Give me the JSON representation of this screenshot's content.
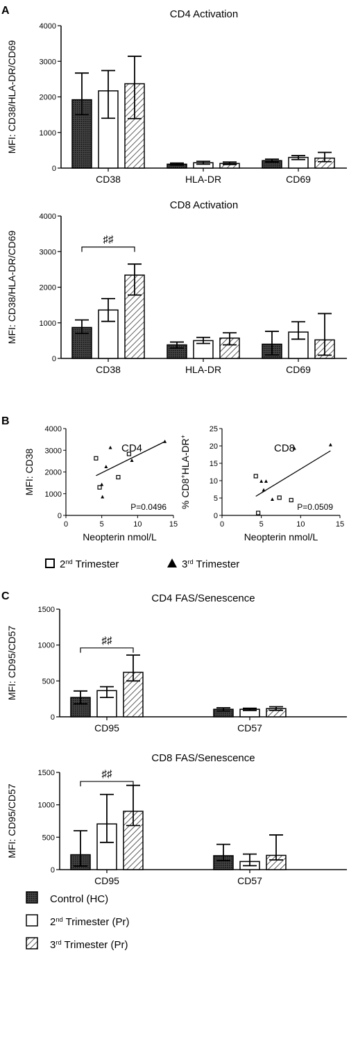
{
  "colors": {
    "control": "#555555",
    "trimester2": "#ffffff",
    "trimester3": "#cccccc",
    "line": "#000000"
  },
  "panel_labels": [
    "A",
    "B",
    "C"
  ],
  "legend_b": [
    {
      "text": "2",
      "sup": "nd",
      "rest": " Trimester",
      "marker": "open-square"
    },
    {
      "text": "3",
      "sup": "rd",
      "rest": " Trimester",
      "marker": "filled-triangle"
    }
  ],
  "legend_main": [
    {
      "text": "Control (HC)",
      "sup": "",
      "rest": "",
      "fill": "control"
    },
    {
      "text": "2",
      "sup": "nd",
      "rest": " Trimester (Pr)",
      "fill": "trimester2"
    },
    {
      "text": "3",
      "sup": "rd",
      "rest": " Trimester (Pr)",
      "fill": "trimester3"
    }
  ],
  "chart_data": [
    {
      "id": "cd4-activation",
      "type": "bar",
      "title": "CD4 Activation",
      "ylabel": "MFI: CD38/HLA-DR/CD69",
      "ylim": [
        0,
        4000
      ],
      "yticks": [
        0,
        1000,
        2000,
        3000,
        4000
      ],
      "categories": [
        "CD38",
        "HLA-DR",
        "CD69"
      ],
      "series": [
        {
          "name": "Control (HC)",
          "fill": "control",
          "values": [
            1920,
            110,
            210
          ],
          "err_low": [
            1500,
            80,
            170
          ],
          "err_high": [
            2670,
            140,
            250
          ]
        },
        {
          "name": "2nd Trimester (Pr)",
          "fill": "trimester2",
          "values": [
            2170,
            150,
            300
          ],
          "err_low": [
            1400,
            110,
            240
          ],
          "err_high": [
            2740,
            190,
            350
          ]
        },
        {
          "name": "3rd Trimester (Pr)",
          "fill": "trimester3",
          "values": [
            2370,
            130,
            280
          ],
          "err_low": [
            1390,
            100,
            180
          ],
          "err_high": [
            3140,
            170,
            440
          ]
        }
      ],
      "brackets": []
    },
    {
      "id": "cd8-activation",
      "type": "bar",
      "title": "CD8 Activation",
      "ylabel": "MFI: CD38/HLA-DR/CD69",
      "ylim": [
        0,
        4000
      ],
      "yticks": [
        0,
        1000,
        2000,
        3000,
        4000
      ],
      "categories": [
        "CD38",
        "HLA-DR",
        "CD69"
      ],
      "series": [
        {
          "name": "Control (HC)",
          "fill": "control",
          "values": [
            870,
            380,
            400
          ],
          "err_low": [
            700,
            290,
            100
          ],
          "err_high": [
            1080,
            460,
            760
          ]
        },
        {
          "name": "2nd Trimester (Pr)",
          "fill": "trimester2",
          "values": [
            1360,
            500,
            740
          ],
          "err_low": [
            1040,
            420,
            540
          ],
          "err_high": [
            1680,
            590,
            1030
          ]
        },
        {
          "name": "3rd Trimester (Pr)",
          "fill": "trimester3",
          "values": [
            2340,
            570,
            520
          ],
          "err_low": [
            1780,
            380,
            90
          ],
          "err_high": [
            2650,
            720,
            1260
          ]
        }
      ],
      "brackets": [
        {
          "from_group": 0,
          "from_series": 0,
          "to_group": 0,
          "to_series": 2,
          "y": 3130,
          "label": "♯♯"
        }
      ]
    },
    {
      "id": "cd4-scatter",
      "type": "scatter",
      "title": "CD4",
      "xlabel": "Neopterin nmol/L",
      "ylabel": "MFI: CD38",
      "xlim": [
        0,
        15
      ],
      "ylim": [
        0,
        4000
      ],
      "xticks": [
        0,
        5,
        10,
        15
      ],
      "yticks": [
        0,
        1000,
        2000,
        3000,
        4000
      ],
      "annotation": "P=0.0496",
      "series": [
        {
          "name": "2nd Trimester",
          "marker": "open-square",
          "x": [
            4.2,
            4.7,
            7.3,
            8.8
          ],
          "y": [
            2630,
            1290,
            1760,
            2830
          ]
        },
        {
          "name": "3rd Trimester",
          "marker": "filled-triangle",
          "x": [
            5.0,
            5.1,
            5.6,
            6.2,
            9.2,
            13.8
          ],
          "y": [
            1420,
            850,
            2240,
            3120,
            2530,
            3400
          ]
        }
      ],
      "fit": {
        "x": [
          4.2,
          13.8
        ],
        "y": [
          1830,
          3400
        ]
      }
    },
    {
      "id": "cd8-scatter",
      "type": "scatter",
      "title": "CD8",
      "xlabel": "Neopterin nmol/L",
      "ylabel": "% CD8+HLA-DR+",
      "ylabel_parts": [
        {
          "t": "% CD8",
          "s": false
        },
        {
          "t": "+",
          "s": true
        },
        {
          "t": "HLA-DR",
          "s": false
        },
        {
          "t": "+",
          "s": true
        }
      ],
      "xlim": [
        0,
        15
      ],
      "ylim": [
        0,
        25
      ],
      "xticks": [
        0,
        5,
        10,
        15
      ],
      "yticks": [
        0,
        5,
        10,
        15,
        20,
        25
      ],
      "annotation": "P=0.0509",
      "series": [
        {
          "name": "2nd Trimester",
          "marker": "open-square",
          "x": [
            4.3,
            4.6,
            7.3,
            8.8
          ],
          "y": [
            11.3,
            0.7,
            5.1,
            4.4
          ]
        },
        {
          "name": "3rd Trimester",
          "marker": "filled-triangle",
          "x": [
            5.0,
            5.3,
            5.6,
            6.4,
            9.2,
            13.8
          ],
          "y": [
            9.8,
            7.3,
            9.8,
            4.6,
            19.3,
            20.3
          ]
        }
      ],
      "fit": {
        "x": [
          4.3,
          13.8
        ],
        "y": [
          5.5,
          18.6
        ]
      }
    },
    {
      "id": "cd4-fas",
      "type": "bar",
      "title": "CD4 FAS/Senescence",
      "ylabel": "MFI: CD95/CD57",
      "ylim": [
        0,
        1500
      ],
      "yticks": [
        0,
        500,
        1000,
        1500
      ],
      "categories": [
        "CD95",
        "CD57"
      ],
      "series": [
        {
          "name": "Control (HC)",
          "fill": "control",
          "values": [
            270,
            105
          ],
          "err_low": [
            180,
            80
          ],
          "err_high": [
            360,
            125
          ]
        },
        {
          "name": "2nd Trimester (Pr)",
          "fill": "trimester2",
          "values": [
            365,
            105
          ],
          "err_low": [
            270,
            88
          ],
          "err_high": [
            420,
            120
          ]
        },
        {
          "name": "3rd Trimester (Pr)",
          "fill": "trimester3",
          "values": [
            620,
            115
          ],
          "err_low": [
            500,
            90
          ],
          "err_high": [
            860,
            140
          ]
        }
      ],
      "brackets": [
        {
          "from_group": 0,
          "from_series": 0,
          "to_group": 0,
          "to_series": 2,
          "y": 960,
          "label": "♯♯"
        }
      ]
    },
    {
      "id": "cd8-fas",
      "type": "bar",
      "title": "CD8 FAS/Senescence",
      "ylabel": "MFI: CD95/CD57",
      "ylim": [
        0,
        1500
      ],
      "yticks": [
        0,
        500,
        1000,
        1500
      ],
      "categories": [
        "CD95",
        "CD57"
      ],
      "series": [
        {
          "name": "Control (HC)",
          "fill": "control",
          "values": [
            230,
            215
          ],
          "err_low": [
            55,
            140
          ],
          "err_high": [
            600,
            390
          ]
        },
        {
          "name": "2nd Trimester (Pr)",
          "fill": "trimester2",
          "values": [
            705,
            125
          ],
          "err_low": [
            420,
            60
          ],
          "err_high": [
            1160,
            240
          ]
        },
        {
          "name": "3rd Trimester (Pr)",
          "fill": "trimester3",
          "values": [
            900,
            220
          ],
          "err_low": [
            680,
            150
          ],
          "err_high": [
            1300,
            535
          ]
        }
      ],
      "brackets": [
        {
          "from_group": 0,
          "from_series": 0,
          "to_group": 0,
          "to_series": 2,
          "y": 1360,
          "label": "♯♯"
        }
      ]
    }
  ]
}
